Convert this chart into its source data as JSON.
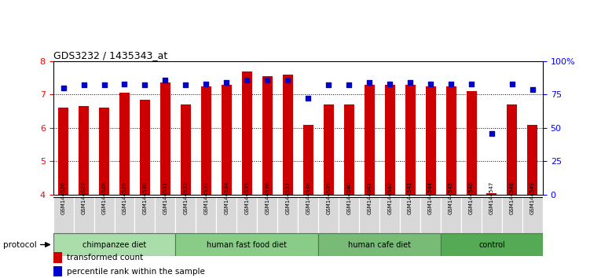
{
  "title": "GDS3232 / 1435343_at",
  "samples": [
    "GSM144526",
    "GSM144527",
    "GSM144528",
    "GSM144529",
    "GSM144530",
    "GSM144531",
    "GSM144532",
    "GSM144533",
    "GSM144534",
    "GSM144535",
    "GSM144536",
    "GSM144537",
    "GSM144538",
    "GSM144539",
    "GSM144540",
    "GSM144541",
    "GSM144542",
    "GSM144543",
    "GSM144544",
    "GSM144545",
    "GSM144546",
    "GSM144547",
    "GSM144548",
    "GSM144549"
  ],
  "transformed_counts": [
    6.6,
    6.65,
    6.6,
    7.05,
    6.85,
    7.35,
    6.7,
    7.25,
    7.3,
    7.7,
    7.55,
    7.6,
    6.08,
    6.7,
    6.7,
    7.3,
    7.3,
    7.3,
    7.25,
    7.25,
    7.1,
    4.05,
    6.7,
    6.1
  ],
  "percentile_ranks": [
    80,
    82,
    82,
    83,
    82,
    86,
    82,
    83,
    84,
    86,
    86,
    86,
    72,
    82,
    82,
    84,
    83,
    84,
    83,
    83,
    83,
    46,
    83,
    79
  ],
  "groups": [
    {
      "label": "chimpanzee diet",
      "start": 0,
      "end": 6,
      "color": "#aaddaa"
    },
    {
      "label": "human fast food diet",
      "start": 6,
      "end": 13,
      "color": "#88cc88"
    },
    {
      "label": "human cafe diet",
      "start": 13,
      "end": 19,
      "color": "#77bb77"
    },
    {
      "label": "control",
      "start": 19,
      "end": 24,
      "color": "#55aa55"
    }
  ],
  "ylim_left": [
    4,
    8
  ],
  "ylim_right": [
    0,
    100
  ],
  "yticks_left": [
    4,
    5,
    6,
    7,
    8
  ],
  "yticks_right": [
    0,
    25,
    50,
    75,
    100
  ],
  "bar_color": "#cc0000",
  "scatter_color": "#0000cc",
  "background_color": "#ffffff"
}
